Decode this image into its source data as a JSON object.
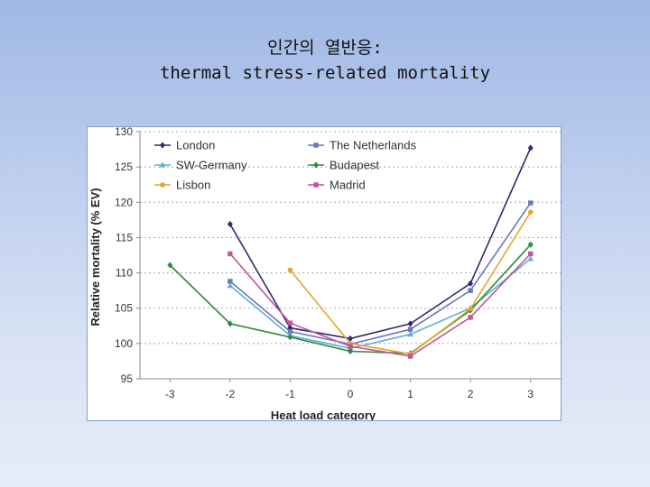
{
  "slide": {
    "title_line1": "인간의 열반응:",
    "title_line2": "thermal stress-related mortality"
  },
  "chart_data": {
    "type": "line",
    "title": "",
    "xlabel": "Heat load category",
    "ylabel": "Relative mortality (% EV)",
    "x": [
      -3,
      -2,
      -1,
      0,
      1,
      2,
      3
    ],
    "xlim": [
      -3.5,
      3.5
    ],
    "ylim": [
      95,
      130
    ],
    "yticks": [
      95,
      100,
      105,
      110,
      115,
      120,
      125,
      130
    ],
    "grid": "horizontal dotted",
    "legend_position": "top-left, two columns",
    "series": [
      {
        "name": "London",
        "color": "#2d2a6e",
        "marker": "diamond",
        "points": [
          [
            -2,
            116.9
          ],
          [
            -1,
            102.2
          ],
          [
            0,
            100.7
          ],
          [
            1,
            102.8
          ],
          [
            2,
            108.5
          ],
          [
            3,
            127.7
          ]
        ]
      },
      {
        "name": "The Netherlands",
        "color": "#6a78b8",
        "marker": "square",
        "points": [
          [
            -2,
            108.8
          ],
          [
            -1,
            101.7
          ],
          [
            0,
            99.9
          ],
          [
            1,
            102.0
          ],
          [
            2,
            107.5
          ],
          [
            3,
            119.9
          ]
        ]
      },
      {
        "name": "SW-Germany",
        "color": "#5fb0d0",
        "marker": "triangle",
        "points": [
          [
            -2,
            108.2
          ],
          [
            -1,
            101.1
          ],
          [
            0,
            99.3
          ],
          [
            1,
            101.3
          ],
          [
            2,
            105.0
          ],
          [
            3,
            112.0
          ]
        ]
      },
      {
        "name": "Budapest",
        "color": "#2e8b3a",
        "marker": "diamond",
        "points": [
          [
            -3,
            111.1
          ],
          [
            -2,
            102.8
          ],
          [
            -1,
            100.9
          ],
          [
            0,
            98.9
          ],
          [
            1,
            98.6
          ],
          [
            2,
            104.7
          ],
          [
            3,
            114.0
          ]
        ]
      },
      {
        "name": "Lisbon",
        "color": "#e3a72a",
        "marker": "circle",
        "points": [
          [
            -1,
            110.4
          ],
          [
            0,
            100.0
          ],
          [
            1,
            98.5
          ],
          [
            2,
            104.9
          ],
          [
            3,
            118.6
          ]
        ]
      },
      {
        "name": "Madrid",
        "color": "#c0559a",
        "marker": "square",
        "points": [
          [
            -2,
            112.7
          ],
          [
            -1,
            102.9
          ],
          [
            0,
            99.6
          ],
          [
            1,
            98.2
          ],
          [
            2,
            103.7
          ],
          [
            3,
            112.7
          ]
        ]
      }
    ]
  }
}
